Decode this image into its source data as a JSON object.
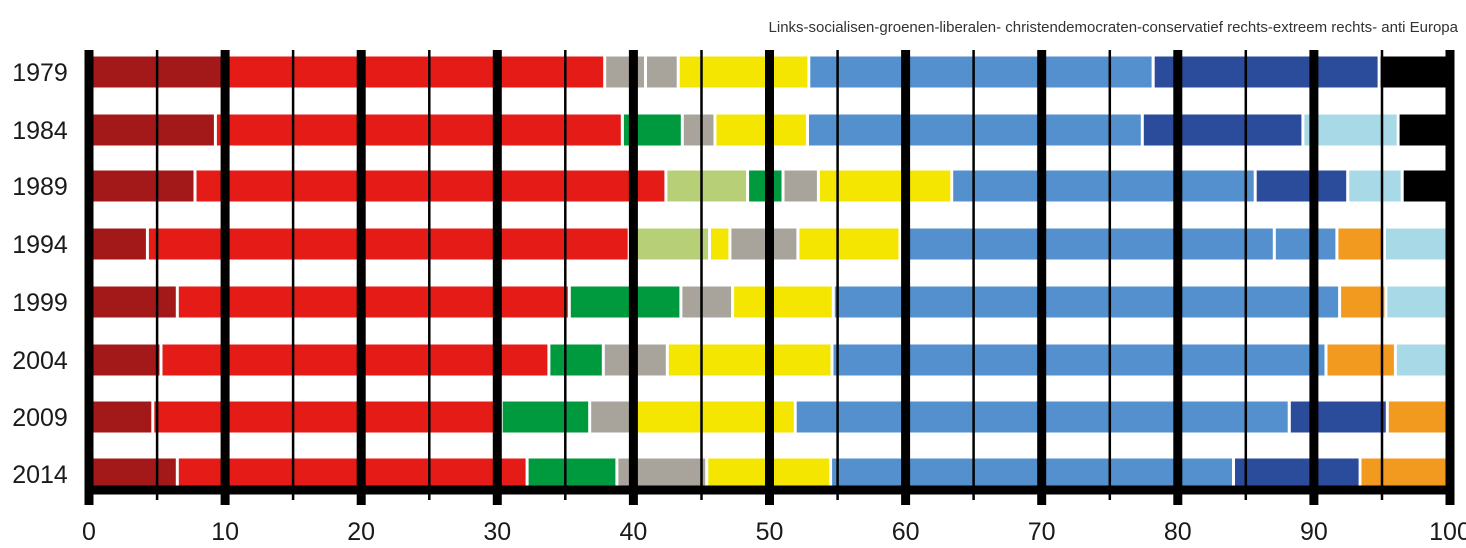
{
  "chart_data": {
    "type": "bar",
    "orientation": "horizontal",
    "stacked": true,
    "legend_text": "Links-socialisen-groenen-liberalen- christendemocraten-conservatief rechts-extreem rechts- anti Europa",
    "legend_position": "top-right",
    "categories": [
      "1979",
      "1984",
      "1989",
      "1994",
      "1999",
      "2004",
      "2009",
      "2014"
    ],
    "xlim": [
      0,
      100
    ],
    "xticks": [
      0,
      10,
      20,
      30,
      40,
      50,
      60,
      70,
      80,
      90,
      100
    ],
    "grid": true,
    "segment_colors": [
      "#a31818",
      "#e41b17",
      "#009a3e",
      "#b7d078",
      "#a9a49b",
      "#f4e600",
      "#5390cd",
      "#2b4b9b",
      "#a8d9e6",
      "#f2991f",
      "#000000"
    ],
    "rows": [
      {
        "year": "1979",
        "segments": [
          {
            "value": 10.2,
            "color": "#a31818"
          },
          {
            "value": 27.8,
            "color": "#e41b17"
          },
          {
            "value": 3.0,
            "color": "#a9a49b"
          },
          {
            "value": 2.4,
            "color": "#a9a49b"
          },
          {
            "value": 9.6,
            "color": "#f4e600"
          },
          {
            "value": 25.3,
            "color": "#5390cd"
          },
          {
            "value": 16.6,
            "color": "#2b4b9b"
          },
          {
            "value": 5.1,
            "color": "#000000"
          }
        ]
      },
      {
        "year": "1984",
        "segments": [
          {
            "value": 9.4,
            "color": "#a31818"
          },
          {
            "value": 29.9,
            "color": "#e41b17"
          },
          {
            "value": 4.4,
            "color": "#009a3e"
          },
          {
            "value": 2.4,
            "color": "#a9a49b"
          },
          {
            "value": 6.8,
            "color": "#f4e600"
          },
          {
            "value": 24.6,
            "color": "#5390cd"
          },
          {
            "value": 11.8,
            "color": "#2b4b9b"
          },
          {
            "value": 7.0,
            "color": "#a8d9e6"
          },
          {
            "value": 3.7,
            "color": "#000000"
          }
        ]
      },
      {
        "year": "1989",
        "segments": [
          {
            "value": 7.9,
            "color": "#a31818"
          },
          {
            "value": 34.6,
            "color": "#e41b17"
          },
          {
            "value": 6.0,
            "color": "#b7d078"
          },
          {
            "value": 2.6,
            "color": "#009a3e"
          },
          {
            "value": 2.6,
            "color": "#a9a49b"
          },
          {
            "value": 9.8,
            "color": "#f4e600"
          },
          {
            "value": 22.3,
            "color": "#5390cd"
          },
          {
            "value": 6.8,
            "color": "#2b4b9b"
          },
          {
            "value": 4.0,
            "color": "#a8d9e6"
          },
          {
            "value": 3.4,
            "color": "#000000"
          }
        ]
      },
      {
        "year": "1994",
        "segments": [
          {
            "value": 4.4,
            "color": "#a31818"
          },
          {
            "value": 35.4,
            "color": "#e41b17"
          },
          {
            "value": 5.9,
            "color": "#b7d078"
          },
          {
            "value": 1.5,
            "color": "#f4e600"
          },
          {
            "value": 5.0,
            "color": "#a9a49b"
          },
          {
            "value": 7.5,
            "color": "#f4e600"
          },
          {
            "value": 27.5,
            "color": "#5390cd"
          },
          {
            "value": 4.6,
            "color": "#5390cd"
          },
          {
            "value": 3.5,
            "color": "#f2991f"
          },
          {
            "value": 4.7,
            "color": "#a8d9e6"
          }
        ]
      },
      {
        "year": "1999",
        "segments": [
          {
            "value": 6.6,
            "color": "#a31818"
          },
          {
            "value": 28.8,
            "color": "#e41b17"
          },
          {
            "value": 8.2,
            "color": "#009a3e"
          },
          {
            "value": 3.8,
            "color": "#a9a49b"
          },
          {
            "value": 7.4,
            "color": "#f4e600"
          },
          {
            "value": 37.2,
            "color": "#5390cd"
          },
          {
            "value": 3.4,
            "color": "#f2991f"
          },
          {
            "value": 4.6,
            "color": "#a8d9e6"
          }
        ]
      },
      {
        "year": "2004",
        "segments": [
          {
            "value": 5.4,
            "color": "#a31818"
          },
          {
            "value": 28.5,
            "color": "#e41b17"
          },
          {
            "value": 4.0,
            "color": "#009a3e"
          },
          {
            "value": 4.7,
            "color": "#a9a49b"
          },
          {
            "value": 12.1,
            "color": "#f4e600"
          },
          {
            "value": 36.3,
            "color": "#5390cd"
          },
          {
            "value": 5.1,
            "color": "#f2991f"
          },
          {
            "value": 3.9,
            "color": "#a8d9e6"
          }
        ]
      },
      {
        "year": "2009",
        "segments": [
          {
            "value": 4.8,
            "color": "#a31818"
          },
          {
            "value": 25.6,
            "color": "#e41b17"
          },
          {
            "value": 6.5,
            "color": "#009a3e"
          },
          {
            "value": 3.2,
            "color": "#a9a49b"
          },
          {
            "value": 11.9,
            "color": "#f4e600"
          },
          {
            "value": 36.3,
            "color": "#5390cd"
          },
          {
            "value": 7.2,
            "color": "#2b4b9b"
          },
          {
            "value": 4.5,
            "color": "#f2991f"
          }
        ]
      },
      {
        "year": "2014",
        "segments": [
          {
            "value": 6.6,
            "color": "#a31818"
          },
          {
            "value": 25.7,
            "color": "#e41b17"
          },
          {
            "value": 6.6,
            "color": "#009a3e"
          },
          {
            "value": 6.6,
            "color": "#a9a49b"
          },
          {
            "value": 9.1,
            "color": "#f4e600"
          },
          {
            "value": 29.6,
            "color": "#5390cd"
          },
          {
            "value": 9.3,
            "color": "#2b4b9b"
          },
          {
            "value": 6.5,
            "color": "#f2991f"
          }
        ]
      }
    ]
  }
}
